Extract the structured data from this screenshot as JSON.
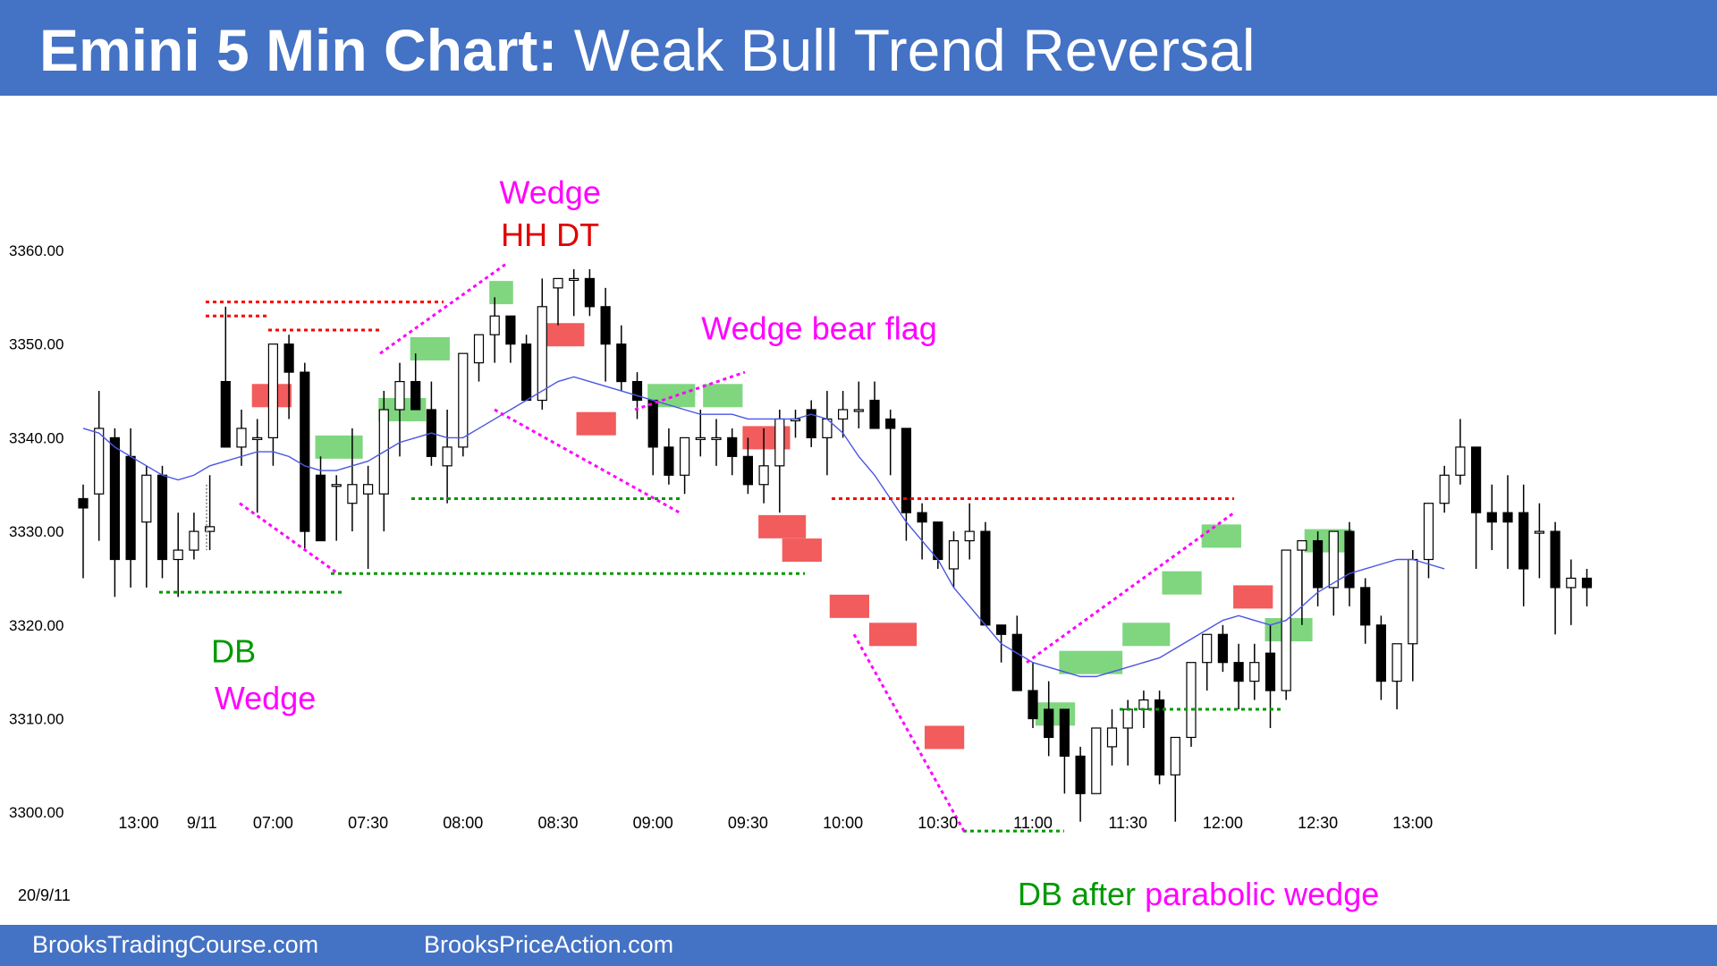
{
  "header": {
    "title_bold": "Emini 5 Min Chart:",
    "title_rest": "Weak Bull Trend Reversal"
  },
  "footer": {
    "left": "BrooksTradingCourse.com",
    "right": "BrooksPriceAction.com"
  },
  "colors": {
    "brand": "#4472c4",
    "bull_bar": "#ffffff",
    "bear_bar": "#000000",
    "ema": "#4a56e2",
    "magenta": "#ff00ff",
    "green": "#009900",
    "red": "#ff0000",
    "bull_highlight": "#7fd67f",
    "bear_highlight": "#f25c5c"
  },
  "chart_data": {
    "type": "candlestick",
    "title": "Emini 5 Min Chart: Weak Bull Trend Reversal",
    "date_label": "20/9/11",
    "ylim": [
      3296,
      3376
    ],
    "y_ticks": [
      "3360.00",
      "3350.00",
      "3340.00",
      "3330.00",
      "3320.00",
      "3310.00",
      "3300.00"
    ],
    "y_tick_values": [
      3360,
      3350,
      3340,
      3330,
      3320,
      3310,
      3300
    ],
    "x_ticks": [
      "13:00",
      "9/11",
      "07:00",
      "07:30",
      "08:00",
      "08:30",
      "09:00",
      "09:30",
      "10:00",
      "10:30",
      "11:00",
      "11:30",
      "12:00",
      "12:30",
      "13:00"
    ],
    "x_tick_bars": [
      3.5,
      7.5,
      12,
      18,
      24,
      30,
      36,
      42,
      48,
      54,
      60,
      66,
      72,
      78,
      84
    ],
    "bars": [
      [
        3333.5,
        3335,
        3325,
        3332.5
      ],
      [
        3334,
        3345,
        3329,
        3341
      ],
      [
        3340,
        3341,
        3323,
        3327
      ],
      [
        3338,
        3341,
        3324,
        3327
      ],
      [
        3331,
        3337,
        3324,
        3336
      ],
      [
        3336,
        3337,
        3325,
        3327
      ],
      [
        3327,
        3332,
        3323,
        3328
      ],
      [
        3328,
        3332,
        3327,
        3330
      ],
      [
        3330,
        3336,
        3328,
        3330.5
      ],
      [
        3346,
        3354,
        3339,
        3339
      ],
      [
        3339,
        3343,
        3337,
        3341
      ],
      [
        3340,
        3342,
        3332,
        3340
      ],
      [
        3340,
        3350,
        3337,
        3350
      ],
      [
        3350,
        3351,
        3342,
        3347
      ],
      [
        3347,
        3348,
        3328,
        3330
      ],
      [
        3336,
        3338,
        3329,
        3329
      ],
      [
        3335,
        3336,
        3329,
        3335
      ],
      [
        3333,
        3341,
        3330,
        3335
      ],
      [
        3334,
        3337,
        3326,
        3335
      ],
      [
        3334,
        3345,
        3330,
        3343
      ],
      [
        3343,
        3348,
        3338,
        3346
      ],
      [
        3346,
        3349,
        3343,
        3343
      ],
      [
        3343,
        3346,
        3337,
        3338
      ],
      [
        3337,
        3343,
        3333,
        3339
      ],
      [
        3339,
        3349,
        3338,
        3349
      ],
      [
        3348,
        3351,
        3346,
        3351
      ],
      [
        3351,
        3355,
        3348,
        3353
      ],
      [
        3353,
        3353,
        3348,
        3350
      ],
      [
        3350,
        3351,
        3344,
        3344
      ],
      [
        3344,
        3357,
        3343,
        3354
      ],
      [
        3356,
        3357,
        3352,
        3357
      ],
      [
        3357,
        3358,
        3353,
        3357
      ],
      [
        3357,
        3358,
        3353,
        3354
      ],
      [
        3354,
        3356,
        3346,
        3350
      ],
      [
        3350,
        3352,
        3345,
        3346
      ],
      [
        3346,
        3347,
        3342,
        3344
      ],
      [
        3344,
        3344,
        3336,
        3339
      ],
      [
        3339,
        3341,
        3335,
        3336
      ],
      [
        3336,
        3340,
        3334,
        3340
      ],
      [
        3340,
        3343,
        3338,
        3340
      ],
      [
        3340,
        3342,
        3337,
        3340
      ],
      [
        3340,
        3341,
        3336,
        3338
      ],
      [
        3338,
        3340,
        3334,
        3335
      ],
      [
        3335,
        3341,
        3333,
        3337
      ],
      [
        3337,
        3343,
        3332,
        3342
      ],
      [
        3342,
        3343,
        3340,
        3342
      ],
      [
        3343,
        3344,
        3339,
        3340
      ],
      [
        3340,
        3345,
        3336,
        3342
      ],
      [
        3342,
        3345,
        3340,
        3343
      ],
      [
        3343,
        3346,
        3341,
        3343
      ],
      [
        3344,
        3346,
        3342,
        3341
      ],
      [
        3342,
        3343,
        3336,
        3341
      ],
      [
        3341,
        3341,
        3329,
        3332
      ],
      [
        3332,
        3333,
        3327,
        3331
      ],
      [
        3331,
        3331,
        3326,
        3327
      ],
      [
        3326,
        3330,
        3324,
        3329
      ],
      [
        3329,
        3333,
        3327,
        3330
      ],
      [
        3330,
        3331,
        3321,
        3320
      ],
      [
        3320,
        3320,
        3316,
        3319
      ],
      [
        3319,
        3321,
        3313,
        3313
      ],
      [
        3313,
        3316,
        3309,
        3310
      ],
      [
        3311,
        3314,
        3306,
        3308
      ],
      [
        3311,
        3311,
        3302,
        3306
      ],
      [
        3306,
        3307,
        3299,
        3302
      ],
      [
        3302,
        3309,
        3302,
        3309
      ],
      [
        3307,
        3311,
        3305,
        3309
      ],
      [
        3309,
        3312,
        3305,
        3311
      ],
      [
        3311,
        3313,
        3309,
        3312
      ],
      [
        3312,
        3313,
        3303,
        3304
      ],
      [
        3304,
        3306,
        3299,
        3308
      ],
      [
        3308,
        3315,
        3307,
        3316
      ],
      [
        3316,
        3319,
        3313,
        3319
      ],
      [
        3319,
        3320,
        3315,
        3316
      ],
      [
        3316,
        3318,
        3311,
        3314
      ],
      [
        3314,
        3318,
        3312,
        3316
      ],
      [
        3317,
        3320,
        3309,
        3313
      ],
      [
        3313,
        3328,
        3312,
        3328
      ],
      [
        3328,
        3329,
        3320,
        3329
      ],
      [
        3329,
        3330,
        3322,
        3324
      ],
      [
        3324,
        3330,
        3321,
        3330
      ],
      [
        3330,
        3331,
        3322,
        3324
      ],
      [
        3324,
        3325,
        3318,
        3320
      ],
      [
        3320,
        3321,
        3312,
        3314
      ],
      [
        3314,
        3318,
        3311,
        3318
      ],
      [
        3318,
        3328,
        3314,
        3327
      ],
      [
        3327,
        3333,
        3325,
        3333
      ],
      [
        3333,
        3337,
        3332,
        3336
      ],
      [
        3336,
        3342,
        3335,
        3339
      ],
      [
        3339,
        3339,
        3326,
        3332
      ],
      [
        3332,
        3335,
        3328,
        3331
      ],
      [
        3332,
        3336,
        3326,
        3331
      ],
      [
        3332,
        3335,
        3322,
        3326
      ],
      [
        3330,
        3333,
        3325,
        3330
      ],
      [
        3330,
        3331,
        3319,
        3324
      ],
      [
        3324,
        3327,
        3320,
        3325
      ],
      [
        3325,
        3326,
        3322,
        3324
      ]
    ],
    "ema": [
      3341,
      3340.5,
      3339,
      3338,
      3337,
      3336,
      3335.5,
      3336,
      3337,
      3337.5,
      3338,
      3338.5,
      3338.5,
      3338,
      3337,
      3336.5,
      3336.5,
      3337,
      3337.5,
      3338.5,
      3339.5,
      3340,
      3340.5,
      3340,
      3340,
      3341,
      3342,
      3343,
      3344,
      3345,
      3346,
      3346.5,
      3346,
      3345.5,
      3345,
      3344.5,
      3344,
      3343.5,
      3343,
      3342.5,
      3342.5,
      3342.5,
      3342,
      3342,
      3342,
      3342,
      3342.5,
      3342,
      3340.5,
      3338,
      3336,
      3333.5,
      3331,
      3329,
      3327,
      3324,
      3322,
      3320,
      3318,
      3317,
      3316,
      3315.5,
      3315,
      3314.5,
      3314.5,
      3315,
      3315.5,
      3316,
      3316.5,
      3317.5,
      3318.5,
      3319.5,
      3320.5,
      3321,
      3320.5,
      3320,
      3320.5,
      3322,
      3323.5,
      3324.5,
      3325.5,
      3326,
      3326.5,
      3327,
      3327,
      3326.5,
      3326
    ],
    "annotations": [
      {
        "text": "Wedge",
        "color": "#ff00ff",
        "bar": 29.5,
        "price": 3365
      },
      {
        "text": "HH DT",
        "color": "#e00000",
        "bar": 29.5,
        "price": 3360.5
      },
      {
        "text": "Wedge bear flag",
        "color": "#ff00ff",
        "bar": 46.5,
        "price": 3350.5
      },
      {
        "text": "DB",
        "color": "#009900",
        "bar": 9.5,
        "price": 3316
      },
      {
        "text": "Wedge",
        "color": "#ff00ff",
        "bar": 11.5,
        "price": 3311
      }
    ],
    "bottom_note": {
      "part1": "DB after",
      "part2": "parabolic wedge"
    }
  }
}
